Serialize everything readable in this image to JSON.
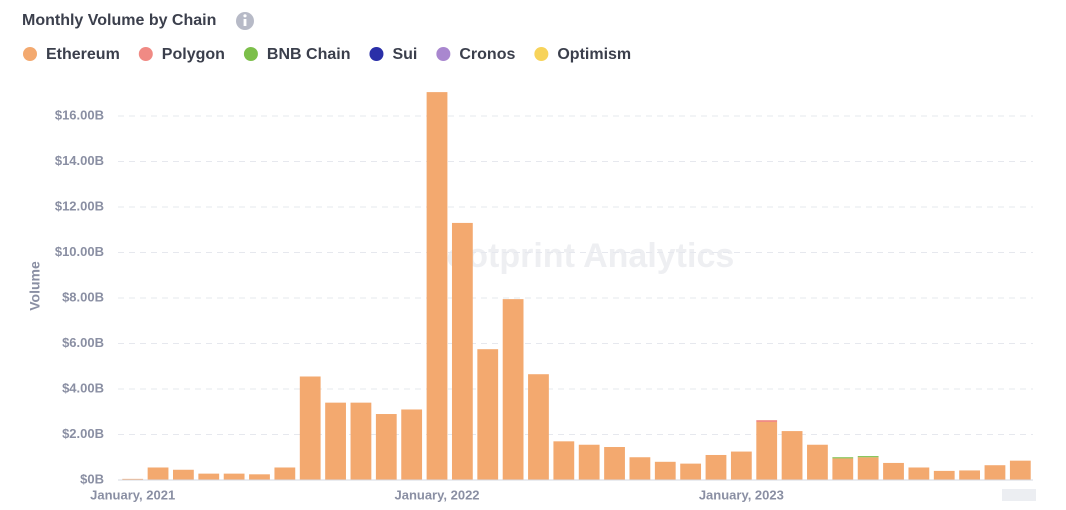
{
  "chart_data": {
    "type": "stacked_bar",
    "title": "Monthly Volume by Chain",
    "watermark": "Footprint Analytics",
    "y_label": "Volume",
    "categories": [
      "January, 2021",
      null,
      null,
      null,
      null,
      null,
      null,
      null,
      null,
      null,
      null,
      null,
      "January, 2022",
      null,
      null,
      null,
      null,
      null,
      null,
      null,
      null,
      null,
      null,
      null,
      "January, 2023",
      null,
      null,
      null,
      null,
      null,
      null,
      null,
      null,
      null,
      null,
      null
    ],
    "series": [
      {
        "name": "Ethereum",
        "color": "#f3a96f",
        "values": [
          0.05,
          0.55,
          0.45,
          0.28,
          0.28,
          0.25,
          0.55,
          4.55,
          3.4,
          3.4,
          2.9,
          3.1,
          17.05,
          11.3,
          5.75,
          7.95,
          4.65,
          1.7,
          1.55,
          1.45,
          1.0,
          0.8,
          0.72,
          1.1,
          1.25,
          2.55,
          2.15,
          1.55,
          0.95,
          1.0,
          0.75,
          0.55,
          0.4,
          0.42,
          0.65,
          0.85
        ]
      },
      {
        "name": "Polygon",
        "color": "#f08a84",
        "values": [
          0,
          0,
          0,
          0,
          0,
          0,
          0,
          0,
          0,
          0,
          0,
          0,
          0,
          0,
          0,
          0,
          0,
          0,
          0,
          0,
          0,
          0,
          0,
          0,
          0,
          0.08,
          0,
          0,
          0,
          0,
          0,
          0,
          0,
          0,
          0,
          0
        ]
      },
      {
        "name": "BNB Chain",
        "color": "#7cbf4a",
        "values": [
          0,
          0,
          0,
          0,
          0,
          0,
          0,
          0,
          0,
          0,
          0,
          0,
          0,
          0,
          0,
          0,
          0,
          0,
          0,
          0,
          0,
          0,
          0,
          0,
          0,
          0,
          0,
          0,
          0.05,
          0.05,
          0,
          0,
          0,
          0,
          0,
          0
        ]
      },
      {
        "name": "Sui",
        "color": "#2a2fa8",
        "values": [
          0,
          0,
          0,
          0,
          0,
          0,
          0,
          0,
          0,
          0,
          0,
          0,
          0,
          0,
          0,
          0,
          0,
          0,
          0,
          0,
          0,
          0,
          0,
          0,
          0,
          0,
          0,
          0,
          0,
          0,
          0,
          0,
          0,
          0,
          0,
          0
        ]
      },
      {
        "name": "Cronos",
        "color": "#a987cf",
        "values": [
          0,
          0,
          0,
          0,
          0,
          0,
          0,
          0,
          0,
          0,
          0,
          0,
          0,
          0,
          0,
          0,
          0,
          0,
          0,
          0,
          0,
          0,
          0,
          0,
          0,
          0,
          0,
          0,
          0,
          0,
          0,
          0,
          0,
          0,
          0,
          0
        ]
      },
      {
        "name": "Optimism",
        "color": "#f7d35a",
        "values": [
          0,
          0,
          0,
          0,
          0,
          0,
          0,
          0,
          0,
          0,
          0,
          0,
          0,
          0,
          0,
          0,
          0,
          0,
          0,
          0,
          0,
          0,
          0,
          0,
          0,
          0,
          0,
          0,
          0,
          0,
          0,
          0,
          0,
          0,
          0,
          0
        ]
      }
    ],
    "ylim": [
      0,
      18
    ],
    "yticks": [
      {
        "value": 0,
        "label": "$0B"
      },
      {
        "value": 2,
        "label": "$2.00B"
      },
      {
        "value": 4,
        "label": "$4.00B"
      },
      {
        "value": 6,
        "label": "$6.00B"
      },
      {
        "value": 8,
        "label": "$8.00B"
      },
      {
        "value": 10,
        "label": "$10.00B"
      },
      {
        "value": 12,
        "label": "$12.00B"
      },
      {
        "value": 14,
        "label": "$14.00B"
      },
      {
        "value": 16,
        "label": "$16.00B"
      }
    ],
    "grid": true
  }
}
